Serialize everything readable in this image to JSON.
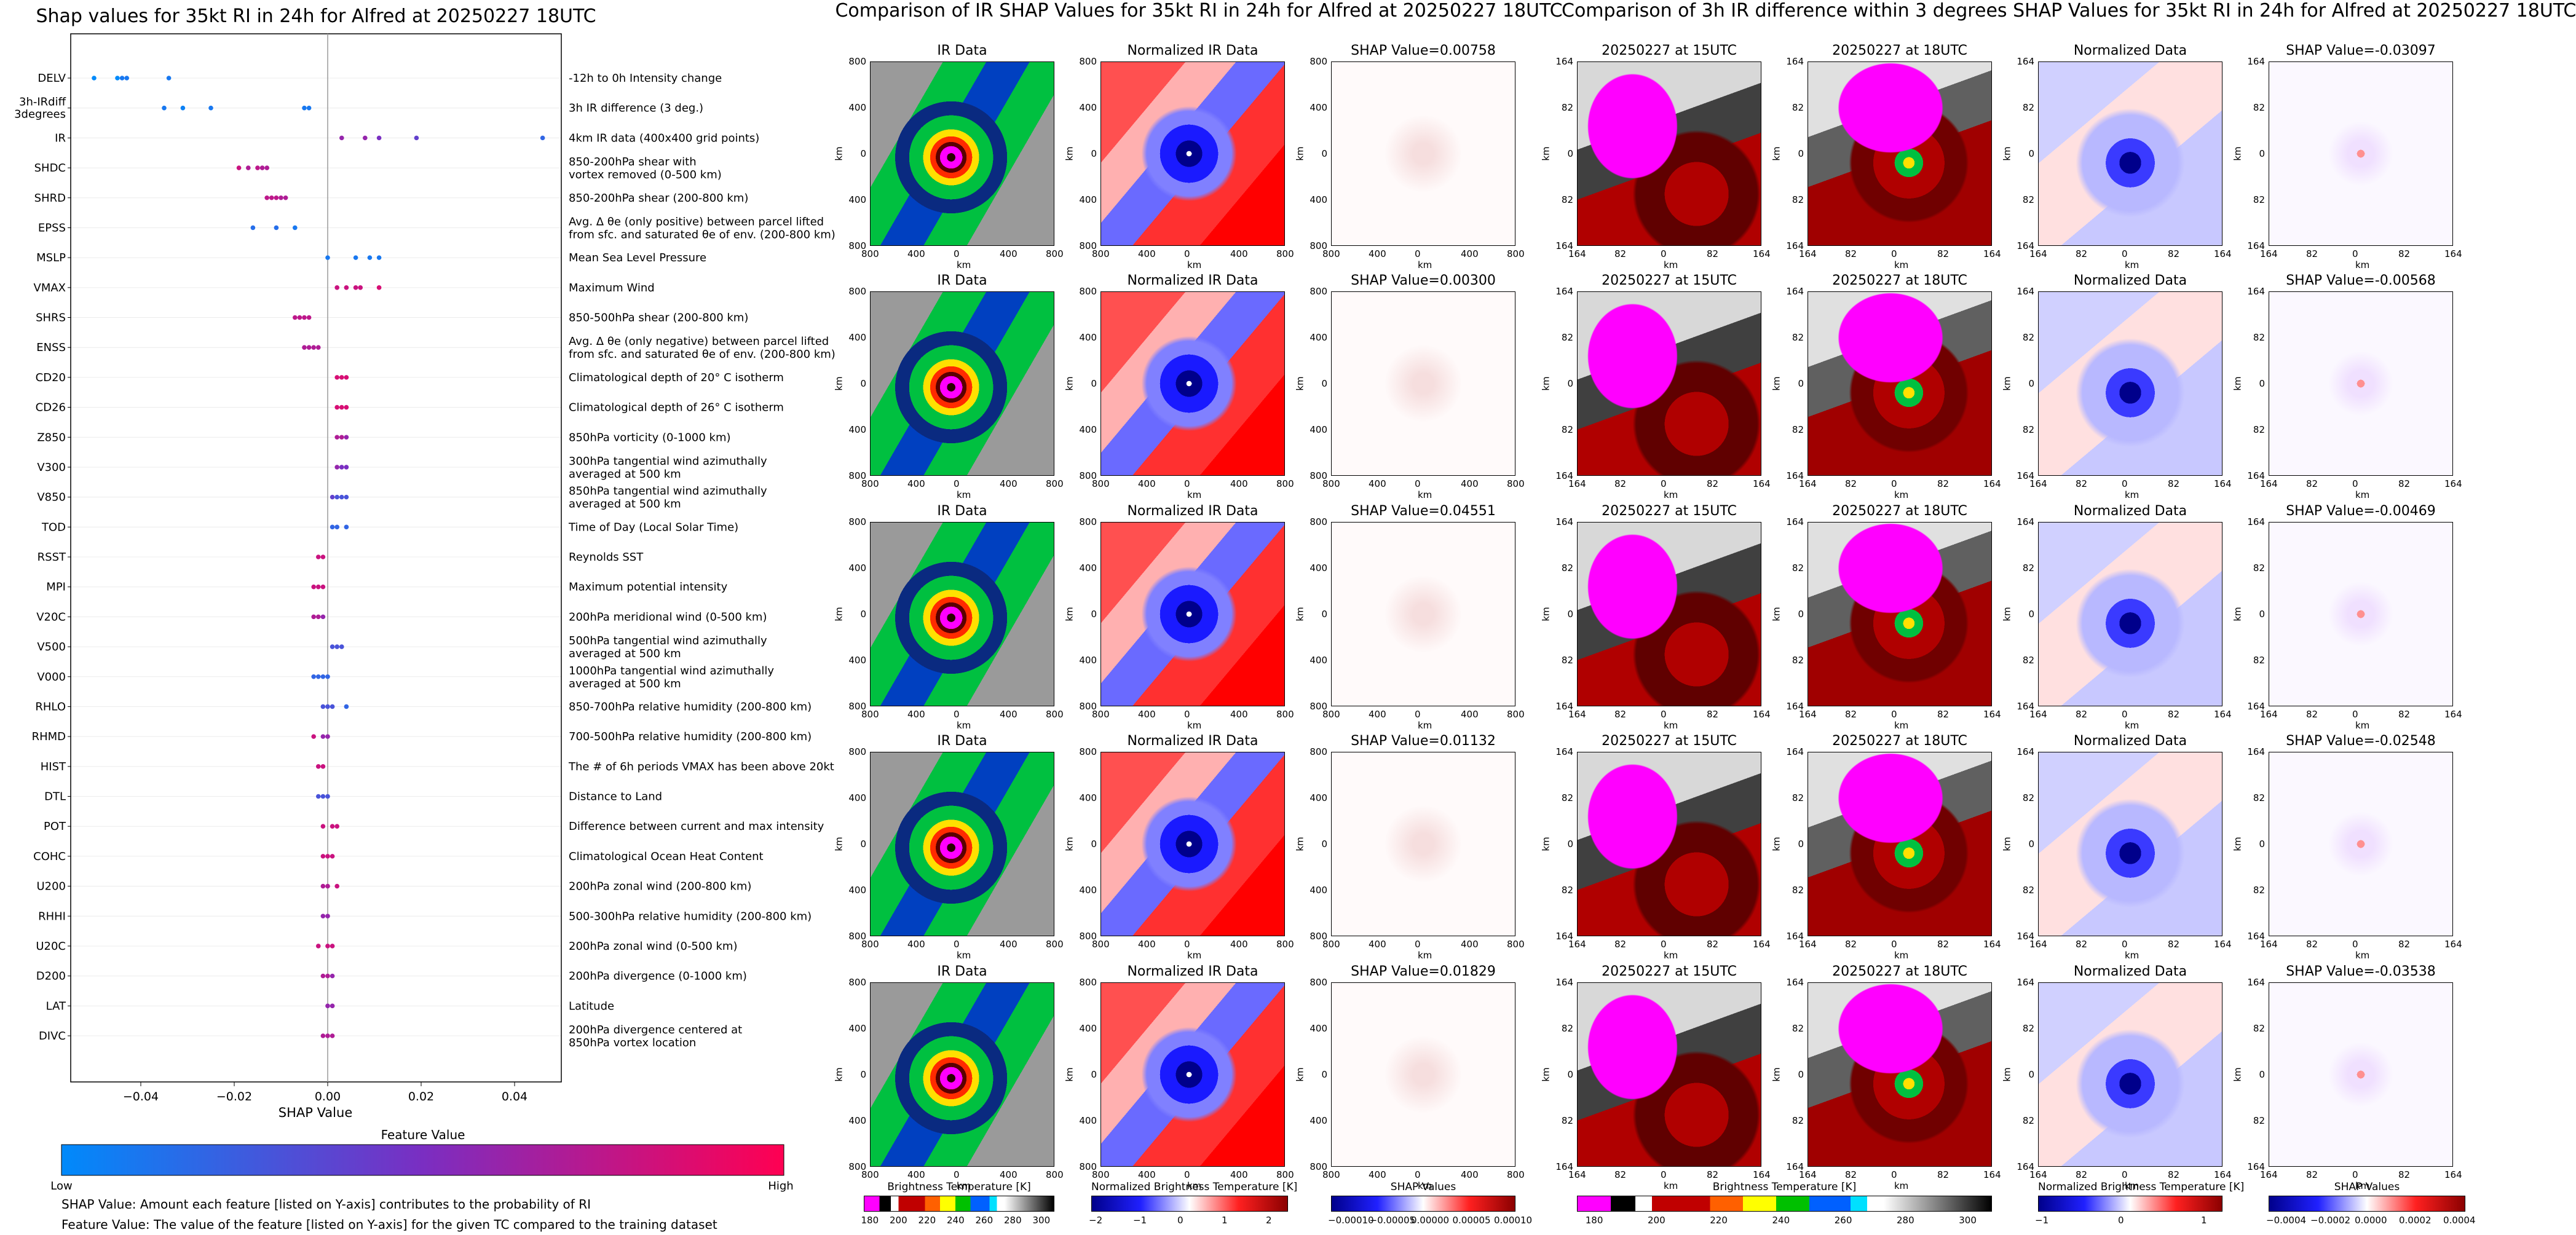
{
  "chart_data": {
    "type": "scatter",
    "title": "Shap values for 35kt RI in 24h for Alfred at 20250227 18UTC",
    "xlabel": "SHAP Value",
    "xlim": [
      -0.055,
      0.05
    ],
    "xticks": [
      -0.04,
      -0.02,
      0.0,
      0.02,
      0.04
    ],
    "xtick_labels": [
      "−0.04",
      "−0.02",
      "0.00",
      "0.02",
      "0.04"
    ],
    "features": [
      {
        "name": "DELV",
        "desc": "-12h to 0h Intensity change",
        "points": [
          [
            -0.05,
            0.0
          ],
          [
            -0.045,
            0.0
          ],
          [
            -0.044,
            0.1
          ],
          [
            -0.043,
            0.1
          ],
          [
            -0.034,
            0.1
          ]
        ]
      },
      {
        "name": "3h-IRdiff\n3degrees",
        "desc": "3h IR difference (3 deg.)",
        "points": [
          [
            -0.035,
            0.1
          ],
          [
            -0.031,
            0.05
          ],
          [
            -0.025,
            0.1
          ],
          [
            -0.005,
            0.1
          ],
          [
            -0.004,
            0.1
          ]
        ]
      },
      {
        "name": "IR",
        "desc": "4km IR data (400x400 grid points)",
        "points": [
          [
            0.003,
            0.6
          ],
          [
            0.008,
            0.6
          ],
          [
            0.011,
            0.5
          ],
          [
            0.019,
            0.4
          ],
          [
            0.046,
            0.2
          ]
        ]
      },
      {
        "name": "SHDC",
        "desc": "850-200hPa shear with\nvortex removed (0-500 km)",
        "points": [
          [
            -0.019,
            0.8
          ],
          [
            -0.017,
            0.7
          ],
          [
            -0.015,
            0.75
          ],
          [
            -0.014,
            0.7
          ],
          [
            -0.013,
            0.7
          ]
        ]
      },
      {
        "name": "SHRD",
        "desc": "850-200hPa shear (200-800 km)",
        "points": [
          [
            -0.013,
            0.75
          ],
          [
            -0.012,
            0.75
          ],
          [
            -0.011,
            0.75
          ],
          [
            -0.01,
            0.7
          ],
          [
            -0.009,
            0.7
          ]
        ]
      },
      {
        "name": "EPSS",
        "desc": "Avg. Δ θe (only positive) between parcel lifted\nfrom sfc. and saturated θe of env. (200-800 km)",
        "points": [
          [
            -0.016,
            0.15
          ],
          [
            -0.011,
            0.15
          ],
          [
            -0.007,
            0.1
          ]
        ]
      },
      {
        "name": "MSLP",
        "desc": "Mean Sea Level Pressure",
        "points": [
          [
            0.0,
            0.1
          ],
          [
            0.006,
            0.1
          ],
          [
            0.009,
            0.1
          ],
          [
            0.011,
            0.1
          ]
        ]
      },
      {
        "name": "VMAX",
        "desc": "Maximum Wind",
        "points": [
          [
            0.002,
            0.8
          ],
          [
            0.004,
            0.8
          ],
          [
            0.006,
            0.8
          ],
          [
            0.007,
            0.8
          ],
          [
            0.011,
            0.85
          ]
        ]
      },
      {
        "name": "SHRS",
        "desc": "850-500hPa shear (200-800 km)",
        "points": [
          [
            -0.007,
            0.75
          ],
          [
            -0.006,
            0.75
          ],
          [
            -0.005,
            0.75
          ],
          [
            -0.004,
            0.75
          ]
        ]
      },
      {
        "name": "ENSS",
        "desc": "Avg. Δ θe (only negative) between parcel lifted\nfrom sfc. and saturated θe of env. (200-800 km)",
        "points": [
          [
            -0.005,
            0.7
          ],
          [
            -0.004,
            0.7
          ],
          [
            -0.003,
            0.7
          ],
          [
            -0.002,
            0.7
          ]
        ]
      },
      {
        "name": "CD20",
        "desc": "Climatological depth of 20° C isotherm",
        "points": [
          [
            0.002,
            0.85
          ],
          [
            0.003,
            0.85
          ],
          [
            0.004,
            0.85
          ]
        ]
      },
      {
        "name": "CD26",
        "desc": "Climatological depth of 26° C isotherm",
        "points": [
          [
            0.002,
            0.85
          ],
          [
            0.003,
            0.85
          ],
          [
            0.004,
            0.85
          ]
        ]
      },
      {
        "name": "Z850",
        "desc": "850hPa vorticity (0-1000 km)",
        "points": [
          [
            0.002,
            0.7
          ],
          [
            0.003,
            0.7
          ],
          [
            0.004,
            0.6
          ]
        ]
      },
      {
        "name": "V300",
        "desc": "300hPa tangential wind azimuthally\naveraged at 500 km",
        "points": [
          [
            0.002,
            0.6
          ],
          [
            0.003,
            0.5
          ],
          [
            0.004,
            0.5
          ]
        ]
      },
      {
        "name": "V850",
        "desc": "850hPa tangential wind azimuthally\naveraged at 500 km",
        "points": [
          [
            0.001,
            0.4
          ],
          [
            0.002,
            0.3
          ],
          [
            0.003,
            0.3
          ],
          [
            0.004,
            0.3
          ]
        ]
      },
      {
        "name": "TOD",
        "desc": "Time of Day (Local Solar Time)",
        "points": [
          [
            0.001,
            0.2
          ],
          [
            0.002,
            0.2
          ],
          [
            0.004,
            0.2
          ]
        ]
      },
      {
        "name": "RSST",
        "desc": "Reynolds SST",
        "points": [
          [
            -0.002,
            0.8
          ],
          [
            -0.001,
            0.8
          ]
        ]
      },
      {
        "name": "MPI",
        "desc": "Maximum potential intensity",
        "points": [
          [
            -0.003,
            0.8
          ],
          [
            -0.002,
            0.8
          ],
          [
            -0.001,
            0.8
          ]
        ]
      },
      {
        "name": "V20C",
        "desc": "200hPa meridional wind (0-500 km)",
        "points": [
          [
            -0.003,
            0.7
          ],
          [
            -0.002,
            0.7
          ],
          [
            -0.001,
            0.6
          ]
        ]
      },
      {
        "name": "V500",
        "desc": "500hPa tangential wind azimuthally\naveraged at 500 km",
        "points": [
          [
            0.001,
            0.3
          ],
          [
            0.002,
            0.3
          ],
          [
            0.003,
            0.3
          ]
        ]
      },
      {
        "name": "V000",
        "desc": "1000hPa tangential wind azimuthally\naveraged at 500 km",
        "points": [
          [
            -0.003,
            0.2
          ],
          [
            -0.002,
            0.2
          ],
          [
            -0.001,
            0.2
          ],
          [
            0.0,
            0.2
          ]
        ]
      },
      {
        "name": "RHLO",
        "desc": "850-700hPa relative humidity (200-800 km)",
        "points": [
          [
            -0.001,
            0.3
          ],
          [
            0.0,
            0.3
          ],
          [
            0.001,
            0.3
          ],
          [
            0.004,
            0.2
          ]
        ]
      },
      {
        "name": "RHMD",
        "desc": "700-500hPa relative humidity (200-800 km)",
        "points": [
          [
            -0.003,
            0.8
          ],
          [
            -0.001,
            0.6
          ],
          [
            0.0,
            0.6
          ]
        ]
      },
      {
        "name": "HIST",
        "desc": "The # of 6h periods VMAX has been above 20kt",
        "points": [
          [
            -0.002,
            0.8
          ],
          [
            -0.001,
            0.8
          ]
        ]
      },
      {
        "name": "DTL",
        "desc": "Distance to Land",
        "points": [
          [
            -0.002,
            0.3
          ],
          [
            -0.001,
            0.3
          ],
          [
            0.0,
            0.3
          ]
        ]
      },
      {
        "name": "POT",
        "desc": "Difference between current and max intensity",
        "points": [
          [
            -0.001,
            0.8
          ],
          [
            0.001,
            0.8
          ],
          [
            0.002,
            0.8
          ]
        ]
      },
      {
        "name": "COHC",
        "desc": "Climatological Ocean Heat Content",
        "points": [
          [
            -0.001,
            0.8
          ],
          [
            0.0,
            0.8
          ],
          [
            0.001,
            0.8
          ]
        ]
      },
      {
        "name": "U200",
        "desc": "200hPa zonal wind (200-800 km)",
        "points": [
          [
            -0.001,
            0.7
          ],
          [
            0.0,
            0.7
          ],
          [
            0.002,
            0.8
          ]
        ]
      },
      {
        "name": "RHHI",
        "desc": "500-300hPa relative humidity (200-800 km)",
        "points": [
          [
            -0.001,
            0.6
          ],
          [
            0.0,
            0.6
          ]
        ]
      },
      {
        "name": "U20C",
        "desc": "200hPa zonal wind (0-500 km)",
        "points": [
          [
            -0.002,
            0.8
          ],
          [
            0.0,
            0.8
          ],
          [
            0.001,
            0.8
          ]
        ]
      },
      {
        "name": "D200",
        "desc": "200hPa divergence (0-1000 km)",
        "points": [
          [
            -0.001,
            0.7
          ],
          [
            0.0,
            0.7
          ],
          [
            0.001,
            0.6
          ]
        ]
      },
      {
        "name": "LAT",
        "desc": "Latitude",
        "points": [
          [
            0.0,
            0.6
          ],
          [
            0.001,
            0.6
          ]
        ]
      },
      {
        "name": "DIVC",
        "desc": "200hPa divergence centered at\n850hPa vortex location",
        "points": [
          [
            -0.001,
            0.7
          ],
          [
            0.0,
            0.7
          ],
          [
            0.001,
            0.7
          ]
        ]
      }
    ],
    "colorbar": {
      "title": "Feature Value",
      "low": "Low",
      "high": "High",
      "colors": [
        "#008afb",
        "#7a2ec2",
        "#ff0052"
      ]
    }
  },
  "footnotes": [
    "SHAP Value: Amount each feature [listed on Y-axis] contributes to the probability of RI",
    "Feature Value: The value of the feature [listed on Y-axis] for the given TC compared to the training dataset"
  ],
  "ir_section": {
    "title": "Comparison of IR SHAP Values for 35kt RI in 24h for Alfred at 20250227 18UTC",
    "column_titles": [
      "IR Data",
      "Normalized IR Data"
    ],
    "shap_titles": [
      "SHAP Value=0.00758",
      "SHAP Value=0.00300",
      "SHAP Value=0.04551",
      "SHAP Value=0.01132",
      "SHAP Value=0.01829"
    ],
    "axis_label": "km",
    "x_ticks": [
      "800",
      "400",
      "0",
      "400",
      "800"
    ],
    "y_ticks": [
      "800",
      "400",
      "0",
      "400",
      "800"
    ],
    "colorbars": [
      {
        "label": "Brightness Temperature [K]",
        "ticks": [
          "180",
          "200",
          "220",
          "240",
          "260",
          "280",
          "300"
        ]
      },
      {
        "label": "Normalized Brightness Temperature [K]",
        "ticks": [
          "−2",
          "−1",
          "0",
          "1",
          "2"
        ]
      },
      {
        "label": "SHAP Values",
        "ticks": [
          "−0.00010",
          "−0.00005",
          "0.00000",
          "0.00005",
          "0.00010"
        ]
      }
    ]
  },
  "diff_section": {
    "title": "Comparison of 3h IR difference within 3 degrees SHAP Values for 35kt RI in 24h for Alfred at 20250227 18UTC",
    "column_titles": [
      "20250227 at 15UTC",
      "20250227 at 18UTC",
      "Normalized Data"
    ],
    "shap_titles": [
      "SHAP Value=-0.03097",
      "SHAP Value=-0.00568",
      "SHAP Value=-0.00469",
      "SHAP Value=-0.02548",
      "SHAP Value=-0.03538"
    ],
    "axis_label": "km",
    "x_ticks": [
      "164",
      "82",
      "0",
      "82",
      "164"
    ],
    "y_ticks": [
      "164",
      "82",
      "0",
      "82",
      "164"
    ],
    "colorbars": [
      {
        "label": "Brightness Temperature [K]",
        "ticks": [
          "180",
          "200",
          "220",
          "240",
          "260",
          "280",
          "300"
        ]
      },
      {
        "label": "Normalized Brightness Temperature [K]",
        "ticks": [
          "−1",
          "0",
          "1"
        ]
      },
      {
        "label": "SHAP Values",
        "ticks": [
          "−0.0004",
          "−0.0002",
          "0.0000",
          "0.0002",
          "0.0004"
        ]
      }
    ]
  }
}
